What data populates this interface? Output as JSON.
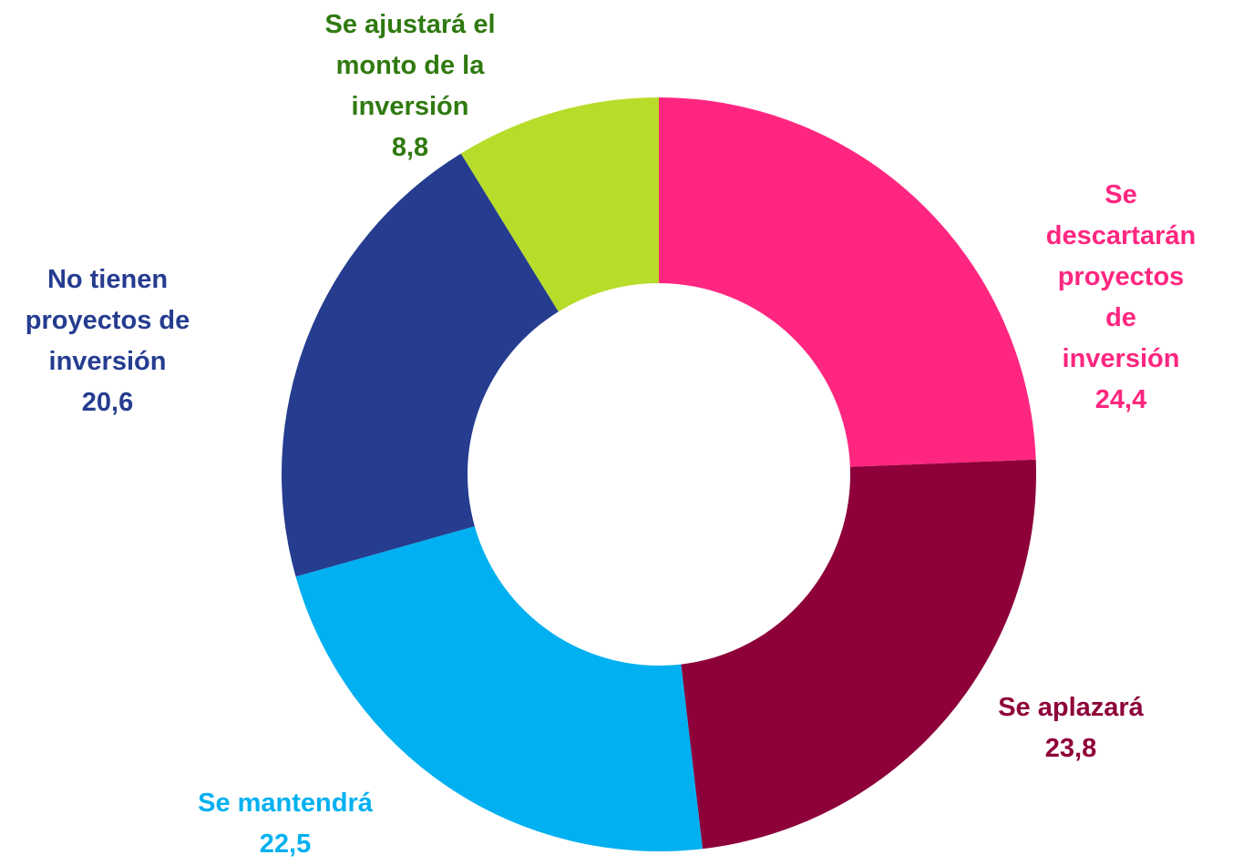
{
  "chart_data": {
    "type": "donut",
    "categories": [
      "Se descartarán\nproyectos de\ninversión",
      "Se aplazará",
      "Se mantendrá",
      "No tienen\nproyectos de\ninversión",
      "Se ajustará el\nmonto de la\ninversión"
    ],
    "values": [
      24.4,
      23.8,
      22.5,
      20.6,
      8.8
    ],
    "value_labels": [
      "24,4",
      "23,8",
      "22,5",
      "20,6",
      "8,8"
    ],
    "colors": [
      "#ff2680",
      "#8e0039",
      "#00b0f0",
      "#253c8f",
      "#b8dc2a"
    ],
    "label_colors": [
      "#ff2680",
      "#8e0039",
      "#00b0f0",
      "#253c8f",
      "#2f7a10"
    ]
  }
}
